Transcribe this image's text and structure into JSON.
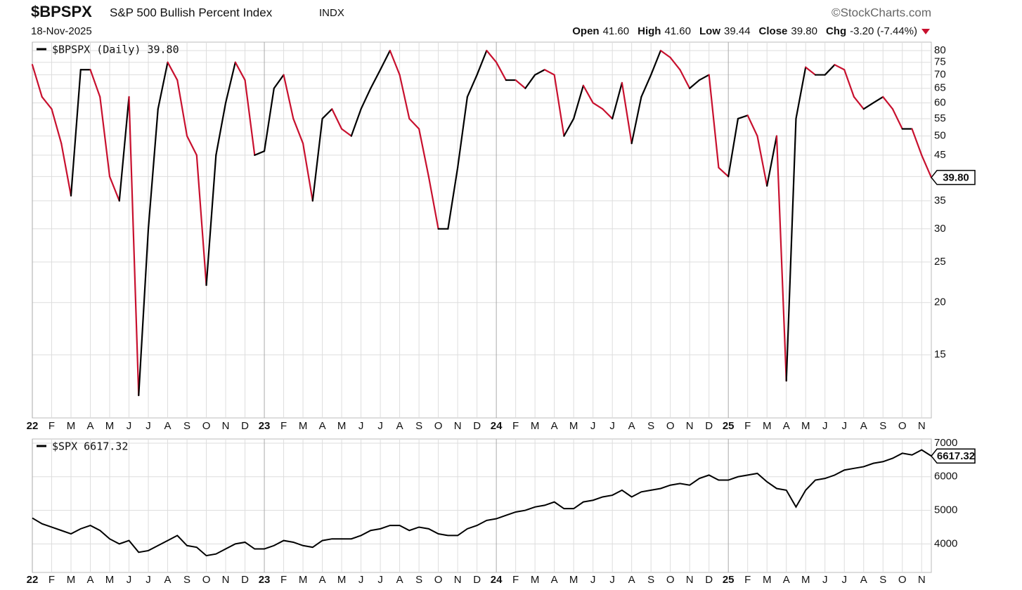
{
  "header": {
    "symbol": "$BPSPX",
    "name": "S&P 500 Bullish Percent Index",
    "exchange": "INDX",
    "date": "18-Nov-2025",
    "source": "©StockCharts.com",
    "quote": [
      {
        "label": "Open",
        "value": "41.60"
      },
      {
        "label": "High",
        "value": "41.60"
      },
      {
        "label": "Low",
        "value": "39.44"
      },
      {
        "label": "Close",
        "value": "39.80"
      },
      {
        "label": "Chg",
        "value": "-3.20 (-7.44%)"
      }
    ]
  },
  "chart_data": [
    {
      "type": "line",
      "log": true,
      "grid": true,
      "categories": [
        "22",
        null,
        "F",
        null,
        "M",
        null,
        "A",
        null,
        "M",
        null,
        "J",
        null,
        "J",
        null,
        "A",
        null,
        "S",
        null,
        "O",
        null,
        "N",
        null,
        "D",
        null,
        "23",
        null,
        "F",
        null,
        "M",
        null,
        "A",
        null,
        "M",
        null,
        "J",
        null,
        "J",
        null,
        "A",
        null,
        "S",
        null,
        "O",
        null,
        "N",
        null,
        "D",
        null,
        "24",
        null,
        "F",
        null,
        "M",
        null,
        "A",
        null,
        "M",
        null,
        "J",
        null,
        "J",
        null,
        "A",
        null,
        "S",
        null,
        "O",
        null,
        "N",
        null,
        "D",
        null,
        "25",
        null,
        "F",
        null,
        "M",
        null,
        "A",
        null,
        "M",
        null,
        "J",
        null,
        "J",
        null,
        "A",
        null,
        "S",
        null,
        "O",
        null,
        "N",
        null
      ],
      "series": [
        {
          "name": "$BPSPX (Daily) 39.80",
          "up_color": "#000000",
          "down_color": "#c8102e",
          "values": [
            74,
            62,
            58,
            48,
            36,
            72,
            72,
            62,
            40,
            35,
            62,
            12,
            30,
            58,
            75,
            68,
            50,
            45,
            22,
            45,
            60,
            75,
            68,
            45,
            46,
            65,
            70,
            55,
            48,
            35,
            55,
            58,
            52,
            50,
            58,
            65,
            72,
            80,
            70,
            55,
            52,
            40,
            30,
            30,
            42,
            62,
            70,
            80,
            75,
            68,
            68,
            65,
            70,
            72,
            70,
            50,
            55,
            66,
            60,
            58,
            55,
            67,
            48,
            62,
            70,
            80,
            77,
            72,
            65,
            68,
            70,
            42,
            40,
            55,
            56,
            50,
            38,
            50,
            13,
            55,
            73,
            70,
            70,
            74,
            72,
            62,
            58,
            60,
            62,
            58,
            52,
            52,
            45,
            39.8
          ]
        }
      ],
      "ylim": [
        10.6,
        83.8
      ],
      "yticks": [
        15,
        20,
        25,
        30,
        35,
        40,
        45,
        50,
        55,
        60,
        65,
        70,
        75,
        80
      ],
      "last_label": {
        "value": 39.8,
        "label": "39.80"
      }
    },
    {
      "type": "line",
      "grid": true,
      "categories": [
        "22",
        null,
        "F",
        null,
        "M",
        null,
        "A",
        null,
        "M",
        null,
        "J",
        null,
        "J",
        null,
        "A",
        null,
        "S",
        null,
        "O",
        null,
        "N",
        null,
        "D",
        null,
        "23",
        null,
        "F",
        null,
        "M",
        null,
        "A",
        null,
        "M",
        null,
        "J",
        null,
        "J",
        null,
        "A",
        null,
        "S",
        null,
        "O",
        null,
        "N",
        null,
        "D",
        null,
        "24",
        null,
        "F",
        null,
        "M",
        null,
        "A",
        null,
        "M",
        null,
        "J",
        null,
        "J",
        null,
        "A",
        null,
        "S",
        null,
        "O",
        null,
        "N",
        null,
        "D",
        null,
        "25",
        null,
        "F",
        null,
        "M",
        null,
        "A",
        null,
        "M",
        null,
        "J",
        null,
        "J",
        null,
        "A",
        null,
        "S",
        null,
        "O",
        null,
        "N",
        null
      ],
      "series": [
        {
          "name": "$SPX 6617.32",
          "color": "#000000",
          "values": [
            4770,
            4600,
            4500,
            4400,
            4300,
            4450,
            4550,
            4400,
            4150,
            4000,
            4100,
            3750,
            3800,
            3950,
            4100,
            4250,
            3950,
            3900,
            3650,
            3700,
            3850,
            4000,
            4050,
            3850,
            3850,
            3950,
            4100,
            4050,
            3950,
            3900,
            4100,
            4150,
            4150,
            4150,
            4250,
            4400,
            4450,
            4550,
            4550,
            4400,
            4500,
            4450,
            4300,
            4250,
            4250,
            4450,
            4550,
            4700,
            4750,
            4850,
            4950,
            5000,
            5100,
            5150,
            5250,
            5050,
            5050,
            5250,
            5300,
            5400,
            5450,
            5600,
            5400,
            5550,
            5600,
            5650,
            5750,
            5800,
            5750,
            5950,
            6050,
            5900,
            5900,
            6000,
            6050,
            6100,
            5850,
            5650,
            5600,
            5100,
            5600,
            5900,
            5950,
            6050,
            6200,
            6250,
            6300,
            6400,
            6450,
            6550,
            6700,
            6650,
            6800,
            6617.32
          ]
        }
      ],
      "ylim": [
        3150,
        7125
      ],
      "yticks": [
        4000,
        5000,
        6000,
        7000
      ],
      "last_label": {
        "value": 6617.32,
        "label": "6617.32"
      }
    }
  ]
}
